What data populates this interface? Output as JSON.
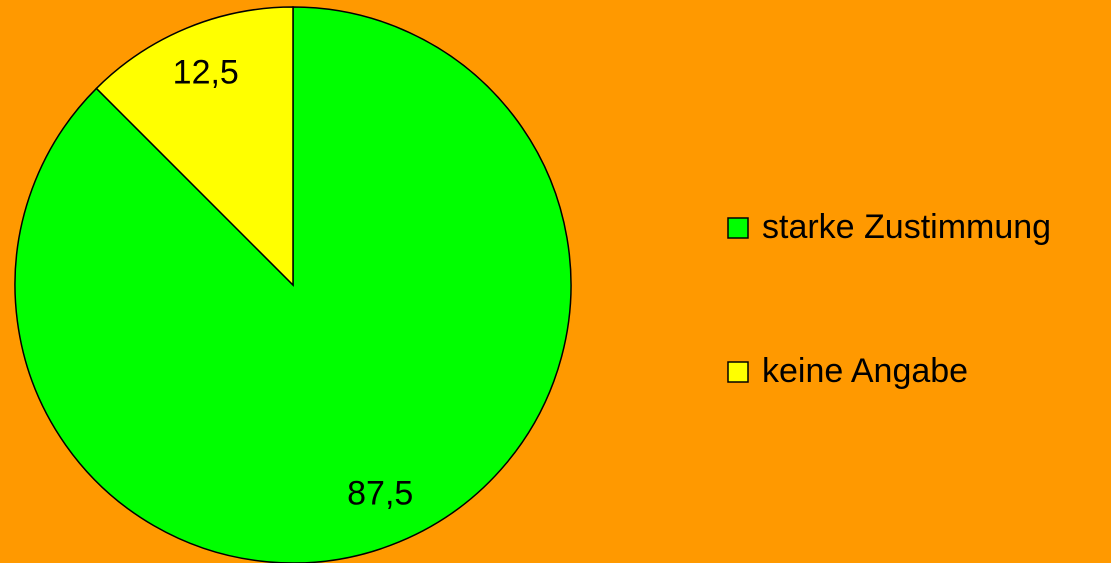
{
  "chart_data": {
    "type": "pie",
    "categories": [
      "starke Zustimmung",
      "keine Angabe"
    ],
    "values": [
      87.5,
      12.5
    ],
    "value_labels": [
      "87,5",
      "12,5"
    ],
    "colors": [
      "#00ff00",
      "#ffff00"
    ],
    "legend": "right"
  }
}
